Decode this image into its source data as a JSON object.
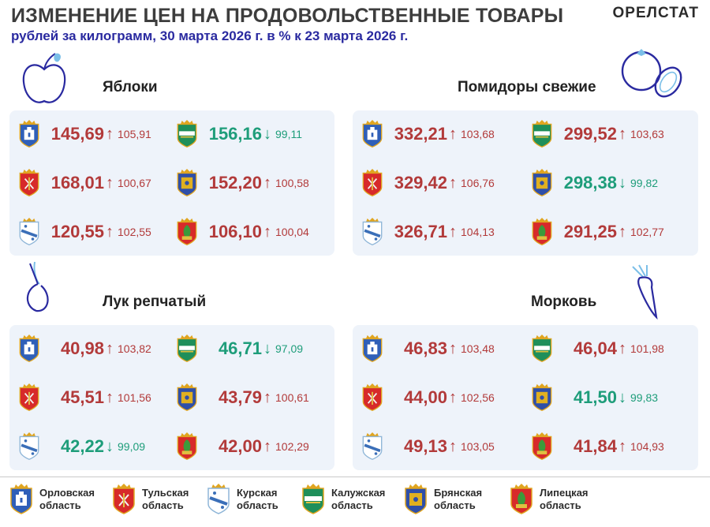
{
  "header": {
    "title": "ИЗМЕНЕНИЕ ЦЕН НА ПРОДОВОЛЬСТВЕННЫЕ ТОВАРЫ",
    "subtitle": "рублей за килограмм, 30 марта 2026 г. в % к 23 марта 2026 г.",
    "brand": "ОРЕЛСТАТ"
  },
  "colors": {
    "up": "#b23a3a",
    "down": "#1e9d7a",
    "panel": "#eef3fa",
    "accent": "#2a2aa0"
  },
  "products": [
    {
      "name": "Яблоки",
      "icon": "apple-icon",
      "items": [
        {
          "region": "orel",
          "price": "145,69",
          "pct": "105,91",
          "dir": "up"
        },
        {
          "region": "kaluga",
          "price": "156,16",
          "pct": "99,11",
          "dir": "down"
        },
        {
          "region": "tula",
          "price": "168,01",
          "pct": "100,67",
          "dir": "up"
        },
        {
          "region": "bryansk",
          "price": "152,20",
          "pct": "100,58",
          "dir": "up"
        },
        {
          "region": "kursk",
          "price": "120,55",
          "pct": "102,55",
          "dir": "up"
        },
        {
          "region": "lipetsk",
          "price": "106,10",
          "pct": "100,04",
          "dir": "up"
        }
      ]
    },
    {
      "name": "Помидоры свежие",
      "icon": "tomato-icon",
      "items": [
        {
          "region": "orel",
          "price": "332,21",
          "pct": "103,68",
          "dir": "up"
        },
        {
          "region": "kaluga",
          "price": "299,52",
          "pct": "103,63",
          "dir": "up"
        },
        {
          "region": "tula",
          "price": "329,42",
          "pct": "106,76",
          "dir": "up"
        },
        {
          "region": "bryansk",
          "price": "298,38",
          "pct": "99,82",
          "dir": "down"
        },
        {
          "region": "kursk",
          "price": "326,71",
          "pct": "104,13",
          "dir": "up"
        },
        {
          "region": "lipetsk",
          "price": "291,25",
          "pct": "102,77",
          "dir": "up"
        }
      ]
    },
    {
      "name": "Лук репчатый",
      "icon": "onion-icon",
      "items": [
        {
          "region": "orel",
          "price": "40,98",
          "pct": "103,82",
          "dir": "up"
        },
        {
          "region": "kaluga",
          "price": "46,71",
          "pct": "97,09",
          "dir": "down"
        },
        {
          "region": "tula",
          "price": "45,51",
          "pct": "101,56",
          "dir": "up"
        },
        {
          "region": "bryansk",
          "price": "43,79",
          "pct": "100,61",
          "dir": "up"
        },
        {
          "region": "kursk",
          "price": "42,22",
          "pct": "99,09",
          "dir": "down"
        },
        {
          "region": "lipetsk",
          "price": "42,00",
          "pct": "102,29",
          "dir": "up"
        }
      ]
    },
    {
      "name": "Морковь",
      "icon": "carrot-icon",
      "items": [
        {
          "region": "orel",
          "price": "46,83",
          "pct": "103,48",
          "dir": "up"
        },
        {
          "region": "kaluga",
          "price": "46,04",
          "pct": "101,98",
          "dir": "up"
        },
        {
          "region": "tula",
          "price": "44,00",
          "pct": "102,56",
          "dir": "up"
        },
        {
          "region": "bryansk",
          "price": "41,50",
          "pct": "99,83",
          "dir": "down"
        },
        {
          "region": "kursk",
          "price": "49,13",
          "pct": "103,05",
          "dir": "up"
        },
        {
          "region": "lipetsk",
          "price": "41,84",
          "pct": "104,93",
          "dir": "up"
        }
      ]
    }
  ],
  "legend": [
    {
      "region": "orel",
      "label": "Орловская область",
      "icon": "orel-crest-icon"
    },
    {
      "region": "tula",
      "label": "Тульская область",
      "icon": "tula-crest-icon"
    },
    {
      "region": "kursk",
      "label": "Курская область",
      "icon": "kursk-crest-icon"
    },
    {
      "region": "kaluga",
      "label": "Калужская область",
      "icon": "kaluga-crest-icon"
    },
    {
      "region": "bryansk",
      "label": "Брянская область",
      "icon": "bryansk-crest-icon"
    },
    {
      "region": "lipetsk",
      "label": "Липецкая область",
      "icon": "lipetsk-crest-icon"
    }
  ]
}
